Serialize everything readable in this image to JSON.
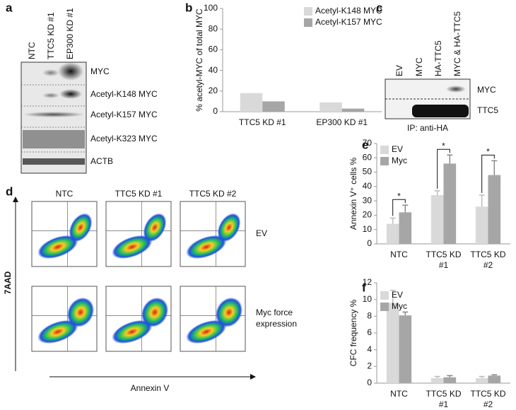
{
  "panel_labels": [
    "a",
    "b",
    "c",
    "d",
    "e",
    "f"
  ],
  "blot_a": {
    "columns": [
      "NTC",
      "TTC5 KD #1",
      "EP300 KD #1"
    ],
    "rows": [
      "MYC",
      "Acetyl-K148 MYC",
      "Acetyl-K157 MYC",
      "Acetyl-K323 MYC",
      "ACTB"
    ]
  },
  "blot_c": {
    "columns": [
      "EV",
      "MYC",
      "HA-TTC5",
      "MYC & HA-TTC5"
    ],
    "rows": [
      "MYC",
      "TTC5"
    ],
    "footer": "IP: anti-HA"
  },
  "flow_d": {
    "columns": [
      "NTC",
      "TTC5 KD #1",
      "TTC5 KD #2"
    ],
    "rows": [
      [
        "EV"
      ],
      [
        "Myc force",
        "expression"
      ]
    ],
    "y_axis": "7AAD",
    "x_axis": "Annexin V"
  },
  "chart_data": [
    {
      "type": "bar",
      "y_label": "% acetyl-MYC of total MYC",
      "categories": [
        "TTC5 KD #1",
        "EP300 KD #1"
      ],
      "series": [
        {
          "name": "Acetyl-K148 MYC",
          "color": "#d9d9d9",
          "values": [
            18,
            9
          ]
        },
        {
          "name": "Acetyl-K157 MYC",
          "color": "#a6a6a6",
          "values": [
            10,
            3
          ]
        }
      ],
      "ylim": [
        0,
        100
      ],
      "yticks": [
        0,
        20,
        40,
        60,
        80,
        100
      ]
    },
    {
      "type": "bar",
      "y_label": "Annexin V⁺ cells %",
      "categories": [
        "NTC",
        "TTC5 KD #1",
        "TTC5 KD #2"
      ],
      "series": [
        {
          "name": "EV",
          "color": "#d9d9d9",
          "values": [
            14,
            34,
            26
          ],
          "errors": [
            4,
            3,
            8
          ]
        },
        {
          "name": "Myc",
          "color": "#a6a6a6",
          "values": [
            22,
            56,
            48
          ],
          "errors": [
            5,
            6,
            10
          ]
        }
      ],
      "annotations": [
        "*",
        "*",
        "*"
      ],
      "ylim": [
        0,
        70
      ],
      "yticks": [
        0,
        10,
        20,
        30,
        40,
        50,
        60,
        70
      ]
    },
    {
      "type": "bar",
      "y_label": "CFC frequency %",
      "categories": [
        "NTC",
        "TTC5 KD #1",
        "TTC5 KD #2"
      ],
      "series": [
        {
          "name": "EV",
          "color": "#d9d9d9",
          "values": [
            9.6,
            0.6,
            0.6
          ],
          "errors": [
            1.5,
            0.2,
            0.2
          ]
        },
        {
          "name": "Myc",
          "color": "#a6a6a6",
          "values": [
            8.1,
            0.7,
            0.9
          ],
          "errors": [
            0.4,
            0.2,
            0.1
          ]
        }
      ],
      "ylim": [
        0,
        12
      ],
      "yticks": [
        0,
        2,
        4,
        6,
        8,
        10,
        12
      ]
    }
  ]
}
